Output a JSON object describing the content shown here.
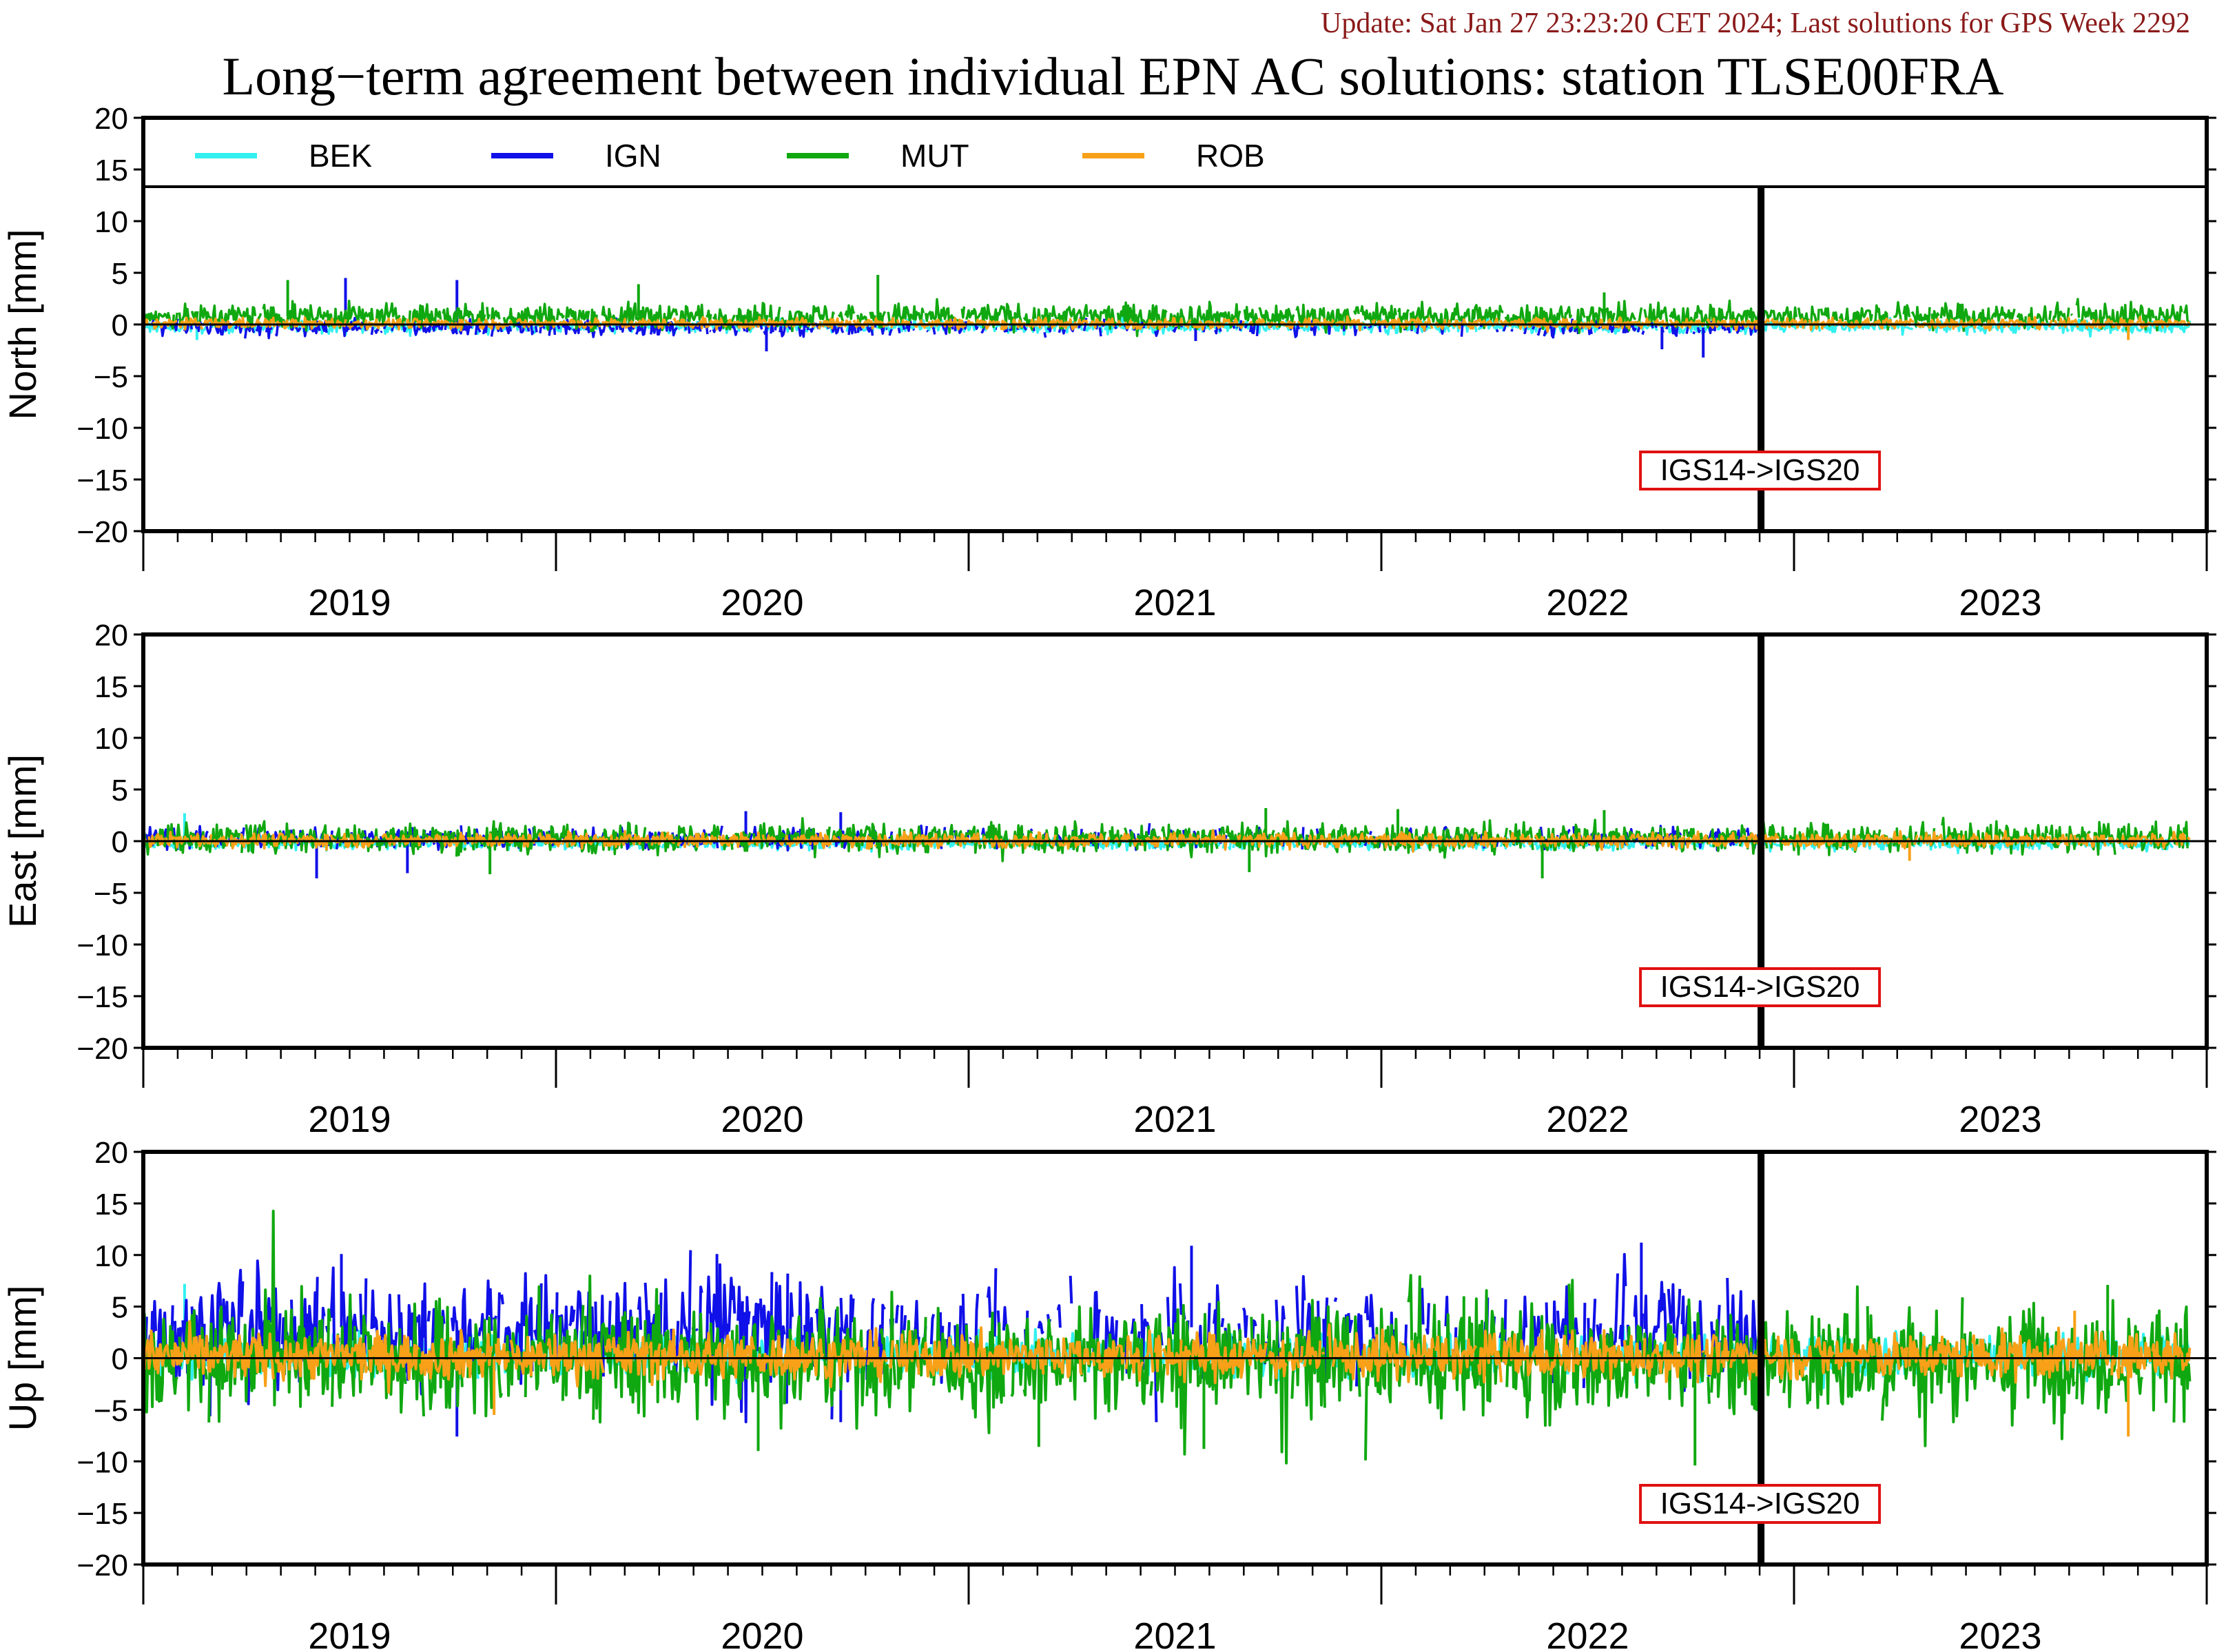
{
  "update_text": "Update: Sat Jan 27 23:23:20 CET 2024; Last solutions for GPS Week 2292",
  "title": "Long−term agreement between individual EPN AC solutions: station TLSE00FRA",
  "colors": {
    "BEK": "#33f0f0",
    "IGN": "#1010e8",
    "MUT": "#10a810",
    "ROB": "#f8a018",
    "annotation_border": "#e01010",
    "update_text": "#8b1a1a"
  },
  "chart_data": [
    {
      "type": "line",
      "ylabel": "North [mm]",
      "ylim": [
        -20,
        20
      ],
      "yticks": [
        20,
        15,
        10,
        5,
        0,
        -5,
        -10,
        -15,
        -20
      ],
      "xlim": [
        2018.5,
        2023.5
      ],
      "year_labels": [
        "2019",
        "2020",
        "2021",
        "2022",
        "2023"
      ],
      "legend": [
        {
          "name": "BEK",
          "color": "#33f0f0"
        },
        {
          "name": "IGN",
          "color": "#1010e8"
        },
        {
          "name": "MUT",
          "color": "#10a810"
        },
        {
          "name": "ROB",
          "color": "#f8a018"
        }
      ],
      "legend_placement": "top, inside plot",
      "frame_change": {
        "x": 2022.42,
        "label": "IGS14->IGS20"
      },
      "series": [
        {
          "name": "BEK",
          "color": "#33f0f0",
          "segments": [
            [
              2018.5,
              2023.46
            ]
          ],
          "mean": -0.2,
          "sd": 0.3,
          "spikes": [
            [
              2018.63,
              -1.5
            ]
          ]
        },
        {
          "name": "IGN",
          "color": "#1010e8",
          "segments": [
            [
              2018.5,
              2022.42
            ]
          ],
          "mean": -0.3,
          "sd": 0.4,
          "spikes": [
            [
              2018.99,
              4.5
            ],
            [
              2019.26,
              4.3
            ],
            [
              2020.01,
              -2.6
            ],
            [
              2022.28,
              -3.2
            ],
            [
              2022.18,
              -2.4
            ],
            [
              2021.05,
              -1.6
            ]
          ]
        },
        {
          "name": "MUT",
          "color": "#10a810",
          "segments": [
            [
              2018.5,
              2023.46
            ]
          ],
          "mean": 0.8,
          "sd": 0.6,
          "spikes": [
            [
              2018.85,
              4.3
            ],
            [
              2020.28,
              4.8
            ],
            [
              2019.7,
              3.9
            ],
            [
              2022.04,
              3.1
            ]
          ]
        },
        {
          "name": "ROB",
          "color": "#f8a018",
          "segments": [
            [
              2018.5,
              2023.46
            ]
          ],
          "mean": 0.1,
          "sd": 0.25,
          "spikes": [
            [
              2023.31,
              -1.5
            ]
          ]
        }
      ]
    },
    {
      "type": "line",
      "ylabel": "East [mm]",
      "ylim": [
        -20,
        20
      ],
      "yticks": [
        20,
        15,
        10,
        5,
        0,
        -5,
        -10,
        -15,
        -20
      ],
      "xlim": [
        2018.5,
        2023.5
      ],
      "year_labels": [
        "2019",
        "2020",
        "2021",
        "2022",
        "2023"
      ],
      "frame_change": {
        "x": 2022.42,
        "label": "IGS14->IGS20"
      },
      "series": [
        {
          "name": "BEK",
          "color": "#33f0f0",
          "segments": [
            [
              2018.5,
              2023.46
            ]
          ],
          "mean": -0.2,
          "sd": 0.3,
          "spikes": [
            [
              2018.6,
              2.7
            ]
          ]
        },
        {
          "name": "IGN",
          "color": "#1010e8",
          "segments": [
            [
              2018.5,
              2022.42
            ]
          ],
          "mean": 0.3,
          "sd": 0.5,
          "spikes": [
            [
              2018.92,
              -3.6
            ],
            [
              2019.14,
              -3.1
            ],
            [
              2019.96,
              2.9
            ],
            [
              2020.19,
              2.8
            ]
          ]
        },
        {
          "name": "MUT",
          "color": "#10a810",
          "segments": [
            [
              2018.5,
              2023.46
            ]
          ],
          "mean": 0.3,
          "sd": 0.7,
          "spikes": [
            [
              2021.22,
              3.2
            ],
            [
              2021.54,
              3.1
            ],
            [
              2021.89,
              -3.6
            ],
            [
              2022.04,
              3.0
            ],
            [
              2021.18,
              -3.0
            ],
            [
              2019.34,
              -3.2
            ]
          ]
        },
        {
          "name": "ROB",
          "color": "#f8a018",
          "segments": [
            [
              2018.5,
              2023.46
            ]
          ],
          "mean": 0.1,
          "sd": 0.35,
          "spikes": [
            [
              2022.78,
              -1.9
            ]
          ]
        }
      ]
    },
    {
      "type": "line",
      "ylabel": "Up [mm]",
      "ylim": [
        -20,
        20
      ],
      "yticks": [
        20,
        15,
        10,
        5,
        0,
        -5,
        -10,
        -15,
        -20
      ],
      "xlim": [
        2018.5,
        2023.5
      ],
      "year_labels": [
        "2019",
        "2020",
        "2021",
        "2022",
        "2023"
      ],
      "frame_change": {
        "x": 2022.42,
        "label": "IGS14->IGS20"
      },
      "series": [
        {
          "name": "BEK",
          "color": "#33f0f0",
          "segments": [
            [
              2018.5,
              2023.46
            ]
          ],
          "mean": 0.3,
          "sd": 1.0,
          "spikes": [
            [
              2018.6,
              7.2
            ],
            [
              2021.64,
              -2.5
            ]
          ]
        },
        {
          "name": "IGN",
          "color": "#1010e8",
          "segments": [
            [
              2018.5,
              2022.42
            ]
          ],
          "mean": 3.0,
          "sd": 2.3,
          "spikes": [
            [
              2018.98,
              10.1
            ],
            [
              2019.89,
              10.1
            ],
            [
              2021.04,
              10.9
            ],
            [
              2022.13,
              11.2
            ],
            [
              2019.26,
              -7.6
            ],
            [
              2020.19,
              -6.2
            ]
          ]
        },
        {
          "name": "MUT",
          "color": "#10a810",
          "segments": [
            [
              2018.5,
              2023.46
            ]
          ],
          "mean": -0.2,
          "sd": 2.5,
          "spikes": [
            [
              2019.99,
              -9.0
            ],
            [
              2020.67,
              -8.6
            ],
            [
              2021.07,
              -8.8
            ],
            [
              2022.26,
              -10.4
            ],
            [
              2023.26,
              7.1
            ],
            [
              2021.7,
              6.0
            ]
          ]
        },
        {
          "name": "ROB",
          "color": "#f8a018",
          "segments": [
            [
              2018.5,
              2023.46
            ]
          ],
          "mean": 0.2,
          "sd": 1.1,
          "spikes": [
            [
              2023.31,
              -7.6
            ],
            [
              2019.35,
              -5.5
            ],
            [
              2023.18,
              4.6
            ]
          ]
        }
      ]
    }
  ]
}
